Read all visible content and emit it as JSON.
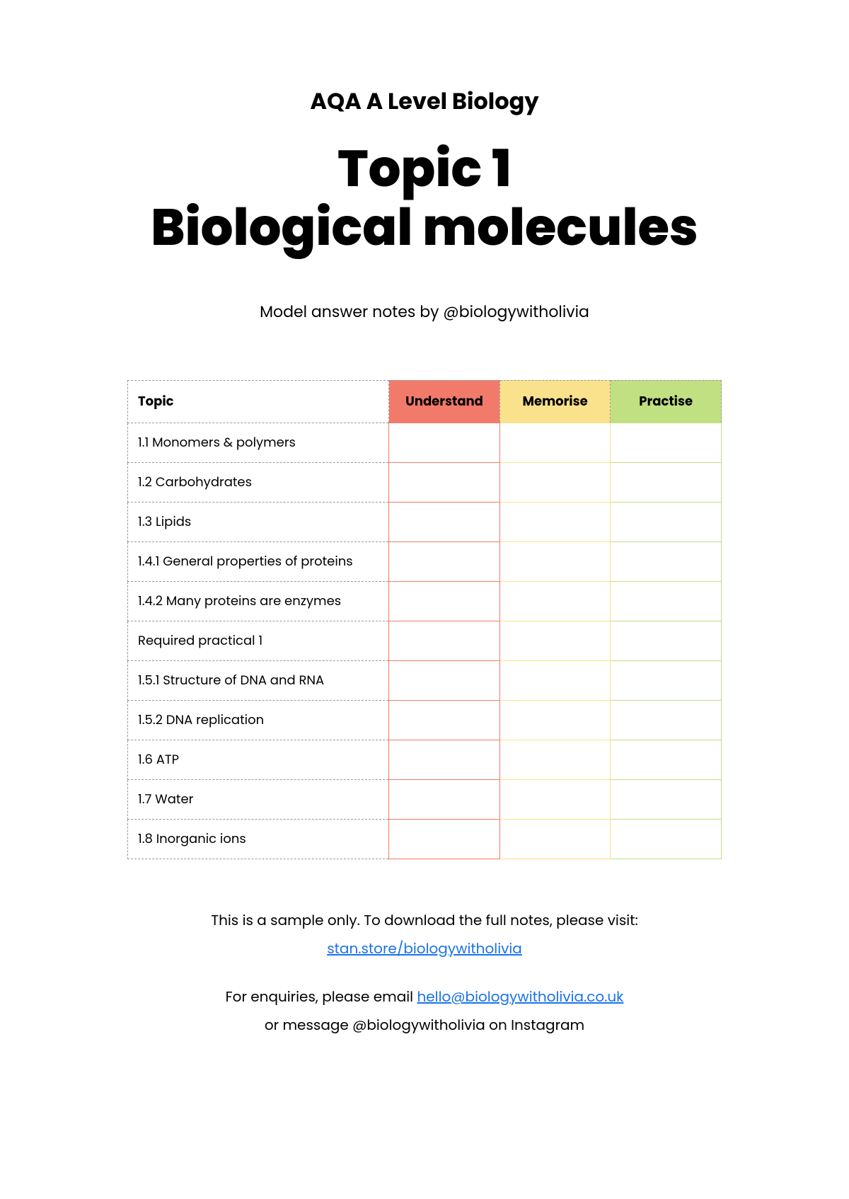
{
  "header": {
    "subtitle": "AQA A Level Biology",
    "title_line1": "Topic 1",
    "title_line2": "Biological molecules",
    "byline": "Model answer notes by @biologywitholivia"
  },
  "table": {
    "columns": {
      "topic": "Topic",
      "understand": "Understand",
      "memorise": "Memorise",
      "practise": "Practise"
    },
    "header_colors": {
      "understand_bg": "#f27a6a",
      "memorise_bg": "#f9e28b",
      "practise_bg": "#c0e082"
    },
    "cell_border_colors": {
      "understand": "#f27a6a",
      "memorise": "#f9e28b",
      "practise": "#c0e082"
    },
    "rows": [
      {
        "topic": "1.1 Monomers & polymers"
      },
      {
        "topic": "1.2 Carbohydrates"
      },
      {
        "topic": "1.3 Lipids"
      },
      {
        "topic": "1.4.1 General properties of proteins"
      },
      {
        "topic": "1.4.2 Many proteins are enzymes"
      },
      {
        "topic": "Required practical 1"
      },
      {
        "topic": "1.5.1 Structure of DNA and RNA"
      },
      {
        "topic": "1.5.2 DNA replication"
      },
      {
        "topic": "1.6 ATP"
      },
      {
        "topic": "1.7 Water"
      },
      {
        "topic": "1.8 Inorganic ions"
      }
    ]
  },
  "footer": {
    "sample_text": "This is a sample only. To download the full notes, please visit:",
    "sample_link": "stan.store/biologywitholivia",
    "enquiries_prefix": "For enquiries, please email ",
    "enquiries_email": "hello@biologywitholivia.co.uk",
    "enquiries_suffix": "or message @biologywitholivia on Instagram"
  }
}
